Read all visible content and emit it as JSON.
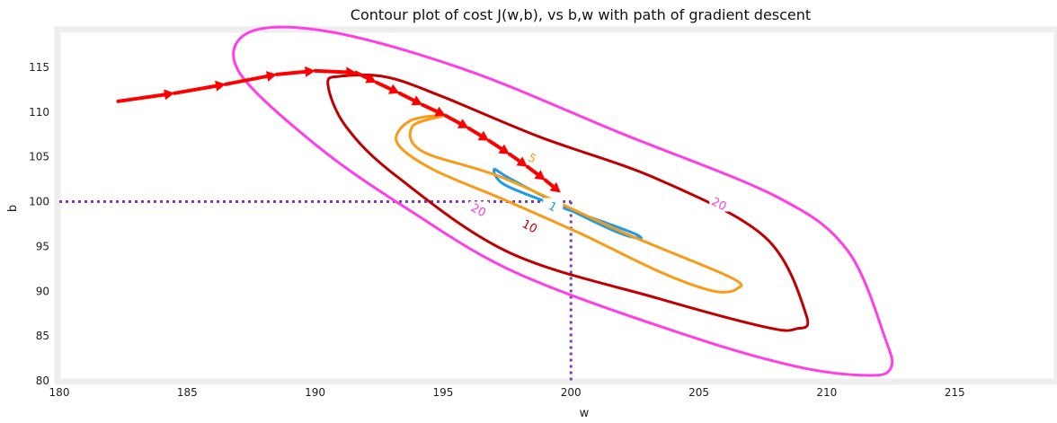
{
  "chart_data": {
    "type": "contour",
    "title": "Contour plot of cost J(w,b), vs b,w with path of gradient descent",
    "xlabel": "w",
    "ylabel": "b",
    "xlim": [
      180,
      219
    ],
    "ylim": [
      80,
      119
    ],
    "xticks": [
      180,
      185,
      190,
      195,
      200,
      205,
      210,
      215
    ],
    "yticks": [
      80,
      85,
      90,
      95,
      100,
      105,
      110,
      115
    ],
    "grid": false,
    "optimum": {
      "w": 200,
      "b": 100
    },
    "contours": [
      {
        "level": "1",
        "color": "#1e9be8",
        "points": [
          [
            197.0,
            103.6
          ],
          [
            197.4,
            101.9
          ],
          [
            199.4,
            99.6
          ],
          [
            201.4,
            97.6
          ],
          [
            202.5,
            96.4
          ],
          [
            202.7,
            95.9
          ],
          [
            201.8,
            96.6
          ],
          [
            199.6,
            99.6
          ],
          [
            197.6,
            102.6
          ],
          [
            197.0,
            103.6
          ]
        ],
        "label_pos": [
          199.3,
          99.5
        ]
      },
      {
        "level": "5",
        "color": "#f89c18",
        "points": [
          [
            195.0,
            109.6
          ],
          [
            193.8,
            108.4
          ],
          [
            194.2,
            105.6
          ],
          [
            197.4,
            102.6
          ],
          [
            202.0,
            96.6
          ],
          [
            206.2,
            91.6
          ],
          [
            206.5,
            90.3
          ],
          [
            205.6,
            90.0
          ],
          [
            203.6,
            92.0
          ],
          [
            200.4,
            96.4
          ],
          [
            197.4,
            100.2
          ],
          [
            194.6,
            103.6
          ],
          [
            193.2,
            106.6
          ],
          [
            193.7,
            109.0
          ],
          [
            195.0,
            109.6
          ]
        ],
        "label_pos": [
          198.5,
          104.9
        ]
      },
      {
        "level": "10",
        "color": "#c00000",
        "points": [
          [
            190.5,
            113.1
          ],
          [
            191.0,
            114.0
          ],
          [
            192.8,
            113.9
          ],
          [
            195.0,
            111.7
          ],
          [
            198.8,
            107.2
          ],
          [
            203.4,
            102.5
          ],
          [
            207.6,
            96.0
          ],
          [
            209.2,
            87.3
          ],
          [
            208.8,
            85.8
          ],
          [
            207.6,
            86.0
          ],
          [
            203.4,
            89.2
          ],
          [
            197.6,
            94.3
          ],
          [
            193.2,
            102.8
          ],
          [
            191.2,
            108.4
          ],
          [
            190.5,
            113.1
          ]
        ],
        "label_pos": [
          198.4,
          97.3
        ]
      },
      {
        "level": "20",
        "color": "#ff3fe6",
        "points": [
          [
            187.5,
            119.0
          ],
          [
            190.7,
            118.9
          ],
          [
            196.0,
            114.6
          ],
          [
            201.9,
            107.7
          ],
          [
            208.0,
            100.6
          ],
          [
            210.8,
            94.6
          ],
          [
            212.3,
            84.6
          ],
          [
            212.5,
            81.4
          ],
          [
            211.6,
            80.6
          ],
          [
            208.8,
            81.6
          ],
          [
            204.4,
            85.2
          ],
          [
            197.9,
            92.0
          ],
          [
            193.6,
            99.2
          ],
          [
            190.0,
            106.4
          ],
          [
            187.0,
            114.6
          ],
          [
            187.5,
            119.0
          ]
        ],
        "label_pos_a": [
          196.4,
          99.1
        ],
        "label_pos_b": [
          205.8,
          99.8
        ]
      }
    ],
    "descent_path": {
      "color": "#ff0000",
      "points": [
        [
          182.3,
          111.2
        ],
        [
          184.5,
          112.1
        ],
        [
          186.5,
          113.1
        ],
        [
          188.5,
          114.2
        ],
        [
          190.0,
          114.6
        ],
        [
          191.6,
          114.4
        ],
        [
          192.4,
          113.3
        ],
        [
          193.3,
          112.1
        ],
        [
          194.2,
          110.8
        ],
        [
          195.1,
          109.6
        ],
        [
          196.0,
          108.2
        ],
        [
          196.8,
          106.8
        ],
        [
          197.6,
          105.3
        ],
        [
          198.3,
          103.9
        ],
        [
          199.0,
          102.4
        ],
        [
          199.6,
          101.0
        ]
      ]
    },
    "reference_lines": {
      "color": "#7a3db8",
      "x": 200,
      "y": 100
    }
  }
}
